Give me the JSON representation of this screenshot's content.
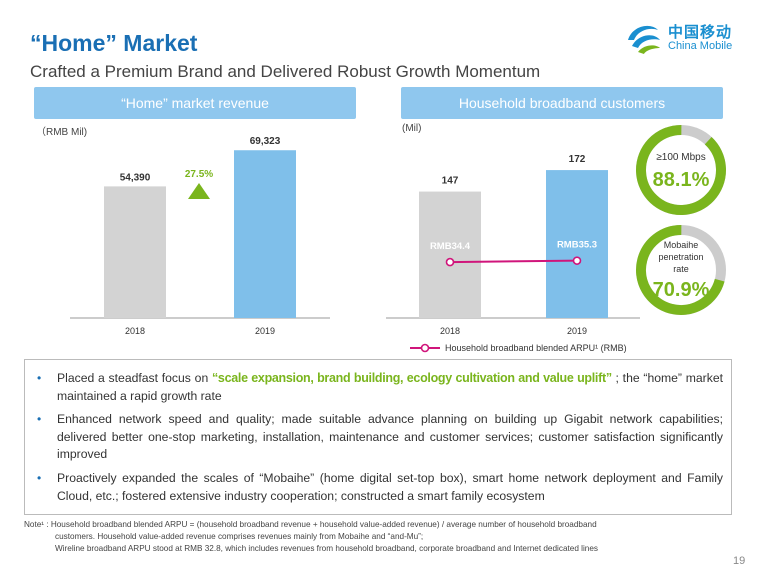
{
  "header": {
    "title": "“Home” Market",
    "subtitle": "Crafted a Premium Brand and Delivered Robust Growth Momentum"
  },
  "logo": {
    "cn": "中国移动",
    "en": "China Mobile"
  },
  "colors": {
    "blue": "#1a6fb4",
    "light_blue": "#8fc7ee",
    "bar_blue": "#7fbfea",
    "bar_gray": "#d3d3d3",
    "green": "#7ab51d",
    "magenta": "#d0157b"
  },
  "chart_data": [
    {
      "type": "bar",
      "title": "“Home” market revenue",
      "unit_label": "（RMB Mil)",
      "categories": [
        "2018",
        "2019"
      ],
      "values": [
        54390,
        69323
      ],
      "value_labels": [
        "54,390",
        "69,323"
      ],
      "growth_label": "27.5%",
      "ylim": [
        0,
        100000
      ]
    },
    {
      "type": "bar",
      "title": "Household broadband customers",
      "unit_label": "(Mil)",
      "categories": [
        "2018",
        "2019"
      ],
      "values": [
        147,
        172
      ],
      "value_labels": [
        "147",
        "172"
      ],
      "ylim": [
        0,
        200
      ],
      "line_series": {
        "name": "Household broadband blended ARPU¹ (RMB)",
        "values": [
          34.4,
          35.3
        ],
        "value_labels": [
          "RMB34.4",
          "RMB35.3"
        ],
        "ylim": [
          0,
          80
        ]
      },
      "donuts": [
        {
          "label": "≥100 Mbps",
          "value_label": "88.1%",
          "fraction": 0.881
        },
        {
          "label_lines": [
            "Mobaihe",
            "penetration",
            "rate"
          ],
          "value_label": "70.9%",
          "fraction": 0.709
        }
      ]
    }
  ],
  "bullets": [
    {
      "pre": "Placed a steadfast focus on ",
      "highlight": "“scale expansion, brand building, ecology cultivation and value uplift”",
      "post": " ; the “home” market maintained a rapid growth rate"
    },
    {
      "text": "Enhanced network speed and quality; made suitable advance planning on building up Gigabit network capabilities; delivered better one-stop marketing, installation, maintenance and customer services; customer satisfaction significantly improved"
    },
    {
      "text": "Proactively expanded the scales of “Mobaihe” (home digital set-top box), smart home network deployment and Family Cloud, etc.; fostered extensive industry cooperation; constructed a smart family ecosystem"
    }
  ],
  "bullet_symbol": "•",
  "note": {
    "line1": "Note¹ : Household broadband blended ARPU = (household broadband revenue + household value-added revenue)  / average number of household broadband",
    "line2": "customers. Household value-added revenue comprises revenues mainly from Mobaihe and “and-Mu”;",
    "line3": "Wireline broadband ARPU stood at RMB 32.8, which includes revenues from household broadband, corporate broadband and Internet dedicated lines"
  },
  "page_number": "19"
}
